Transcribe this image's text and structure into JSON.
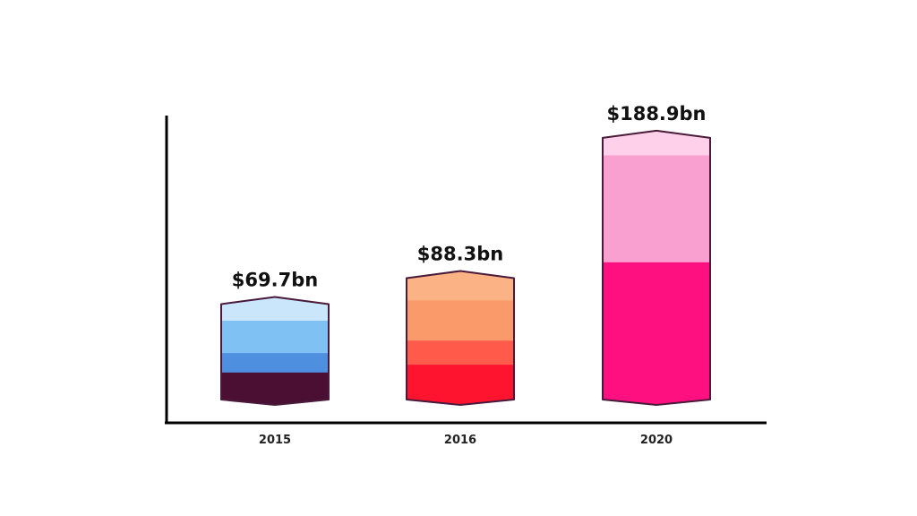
{
  "chart_data": {
    "type": "bar",
    "title": "",
    "xlabel": "",
    "ylabel": "",
    "categories": [
      "2015",
      "2016",
      "2020"
    ],
    "values": [
      69.7,
      88.3,
      188.9
    ],
    "data_labels": [
      "$69.7bn",
      "$88.3bn",
      "$188.9bn"
    ],
    "unit": "bn USD",
    "ylim": [
      0,
      200
    ],
    "grid": false,
    "legend": "none",
    "bar_colors": [
      [
        "#c9e6fb",
        "#7fc1f2",
        "#4f8fe0",
        "#4b0f33"
      ],
      [
        "#fbb284",
        "#fa9a6a",
        "#ff5a4a",
        "#ff1430"
      ],
      [
        "#ffd0ea",
        "#f9a0d0",
        "#f589c6",
        "#ff1080"
      ]
    ],
    "bar_outline": "#4a1a3a",
    "axis_color": "#000000"
  }
}
